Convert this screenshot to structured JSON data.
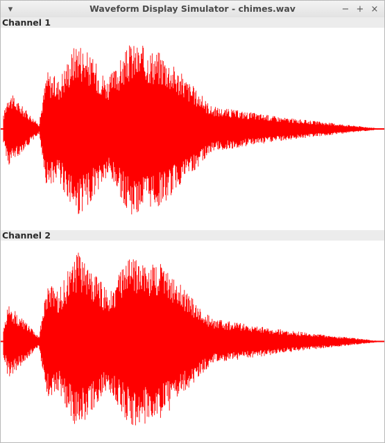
{
  "window": {
    "title": "Waveform Display Simulator - chimes.wav"
  },
  "controls": {
    "menu_icon": "chevron-down-icon",
    "minimize_icon": "minimize-icon",
    "maximize_icon": "maximize-icon",
    "close_icon": "close-icon"
  },
  "channels": [
    {
      "label": "Channel 1"
    },
    {
      "label": "Channel 2"
    }
  ],
  "colors": {
    "waveform": "#ff0000",
    "background": "#ffffff",
    "label_bar": "#ececec"
  },
  "chart_data": {
    "type": "line",
    "title": "",
    "xlabel": "",
    "ylabel": "",
    "ylim": [
      -1,
      1
    ],
    "grid": false,
    "envelope_description": [
      {
        "t": 0.0,
        "amp": 0.0
      },
      {
        "t": 0.02,
        "amp": 0.42
      },
      {
        "t": 0.1,
        "amp": 0.05
      },
      {
        "t": 0.12,
        "amp": 0.65
      },
      {
        "t": 0.15,
        "amp": 0.55
      },
      {
        "t": 0.2,
        "amp": 1.0
      },
      {
        "t": 0.28,
        "amp": 0.55
      },
      {
        "t": 0.34,
        "amp": 0.95
      },
      {
        "t": 0.42,
        "amp": 0.85
      },
      {
        "t": 0.55,
        "amp": 0.25
      },
      {
        "t": 0.75,
        "amp": 0.12
      },
      {
        "t": 1.0,
        "amp": 0.0
      }
    ]
  }
}
